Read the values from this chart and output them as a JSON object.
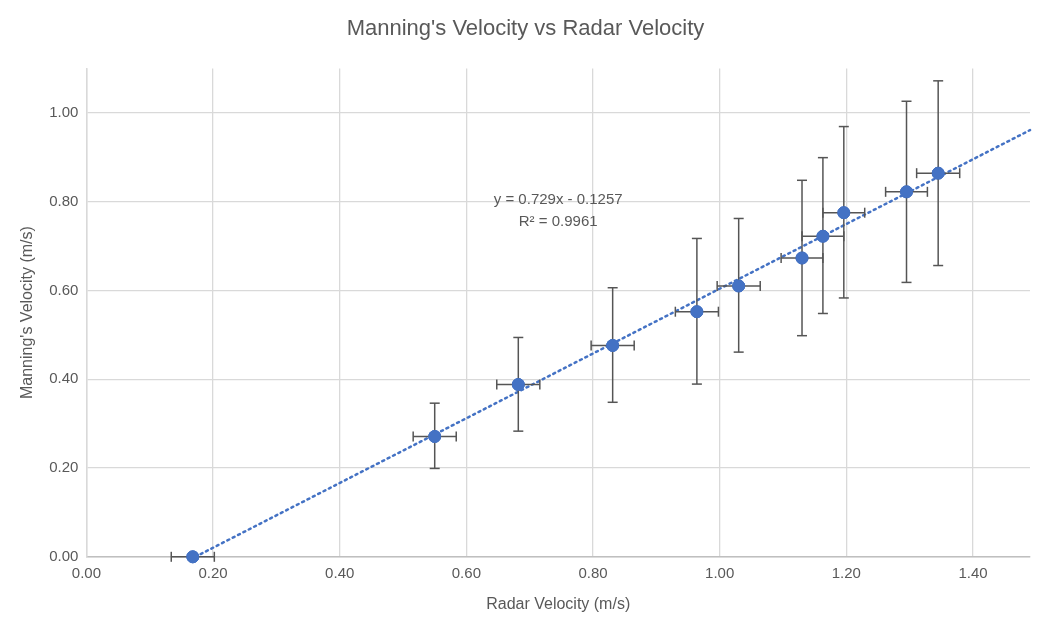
{
  "chart_data": {
    "type": "scatter",
    "title": "Manning's Velocity vs Radar Velocity",
    "xlabel": "Radar Velocity (m/s)",
    "ylabel": "Manning's Velocity (m/s)",
    "annotations": [
      "y = 0.729x - 0.1257",
      "R² = 0.9961"
    ],
    "xlim": [
      0,
      1.49
    ],
    "ylim": [
      0,
      1.1
    ],
    "xticks": [
      {
        "value": 0,
        "label": "0.00"
      },
      {
        "value": 0.2,
        "label": "0.20"
      },
      {
        "value": 0.4,
        "label": "0.40"
      },
      {
        "value": 0.6,
        "label": "0.60"
      },
      {
        "value": 0.8,
        "label": "0.80"
      },
      {
        "value": 1.0,
        "label": "1.00"
      },
      {
        "value": 1.2,
        "label": "1.20"
      },
      {
        "value": 1.4,
        "label": "1.40"
      }
    ],
    "yticks": [
      {
        "value": 0,
        "label": "0.00"
      },
      {
        "value": 0.2,
        "label": "0.20"
      },
      {
        "value": 0.4,
        "label": "0.40"
      },
      {
        "value": 0.6,
        "label": "0.60"
      },
      {
        "value": 0.8,
        "label": "0.80"
      },
      {
        "value": 1.0,
        "label": "1.00"
      }
    ],
    "grid": true,
    "legend": false,
    "series": [
      {
        "type": "scatter",
        "color": "#4472c4",
        "marker": "circle",
        "x": [
          0.168,
          0.55,
          0.682,
          0.831,
          0.964,
          1.03,
          1.13,
          1.163,
          1.196,
          1.295,
          1.345
        ],
        "values": [
          0,
          0.271,
          0.388,
          0.476,
          0.552,
          0.61,
          0.673,
          0.722,
          0.775,
          0.822,
          0.864
        ],
        "errors": [
          null,
          [
            0.199,
            0.346
          ],
          [
            0.283,
            0.494
          ],
          [
            0.348,
            0.606
          ],
          [
            0.389,
            0.717
          ],
          [
            0.461,
            0.762
          ],
          [
            0.498,
            0.848
          ],
          [
            0.548,
            0.899
          ],
          [
            0.583,
            0.969
          ],
          [
            0.618,
            1.026
          ],
          [
            0.656,
            1.072
          ]
        ],
        "xerrors": [
          0.034,
          0.034,
          0.034,
          0.034,
          0.034,
          0.034,
          0.033,
          0.033,
          0.033,
          0.033,
          0.034
        ]
      },
      {
        "type": "line",
        "color": "#4472c4",
        "line_style": "dotted",
        "x": [
          0.172,
          1.49
        ],
        "values": [
          0,
          0.961
        ]
      }
    ]
  }
}
